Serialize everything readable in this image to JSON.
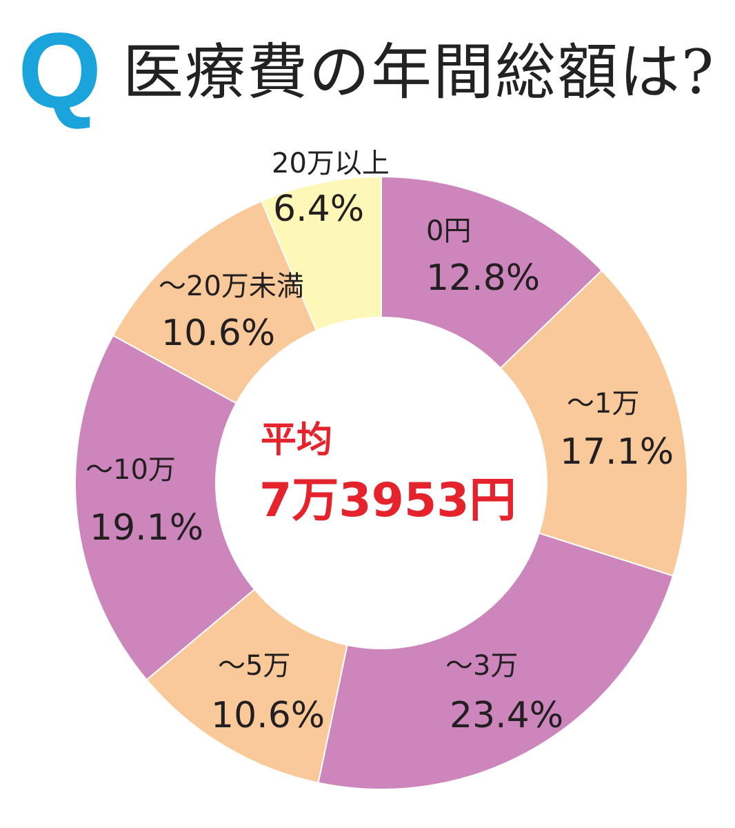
{
  "header": {
    "q_mark": "Q",
    "title": "医療費の年間総額は?"
  },
  "center": {
    "label": "平均",
    "value": "7万3953円"
  },
  "chart_data": {
    "type": "pie",
    "donut": true,
    "title": "医療費の年間総額は?",
    "categories": [
      "0円",
      "～1万",
      "～3万",
      "～5万",
      "～10万",
      "～20万未満",
      "20万以上"
    ],
    "values": [
      12.8,
      17.1,
      23.4,
      10.6,
      19.1,
      10.6,
      6.4
    ],
    "value_labels": [
      "12.8%",
      "17.1%",
      "23.4%",
      "10.6%",
      "19.1%",
      "10.6%",
      "6.4%"
    ],
    "unit": "%",
    "colors": [
      "#cd86bc",
      "#f9c99a",
      "#cd86bc",
      "#f9c99a",
      "#cd86bc",
      "#f9c99a",
      "#fdf8b8"
    ],
    "start": "12 o'clock, clockwise",
    "legend": "none",
    "center_text": [
      "平均",
      "7万3953円"
    ]
  }
}
